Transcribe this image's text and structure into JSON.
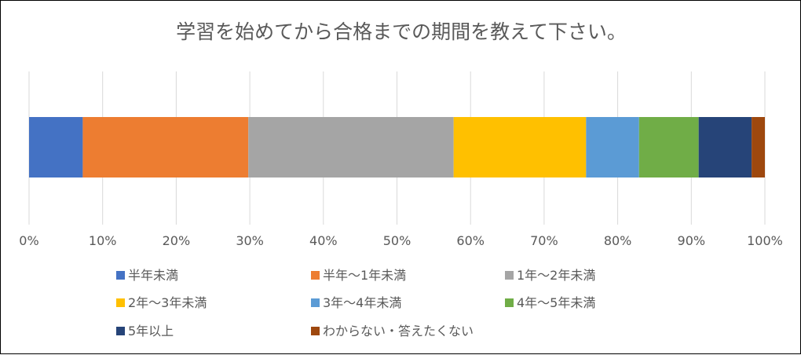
{
  "chart_data": {
    "type": "bar",
    "orientation": "horizontal",
    "stacked": "100%",
    "title": "学習を始めてから合格までの期間を教えて下さい。",
    "xlim": [
      0,
      100
    ],
    "x_ticks": [
      "0%",
      "10%",
      "20%",
      "30%",
      "40%",
      "50%",
      "60%",
      "70%",
      "80%",
      "90%",
      "100%"
    ],
    "grid": true,
    "legend_position": "bottom",
    "series": [
      {
        "name": "半年未満",
        "value": 7.3,
        "color": "#4472C4"
      },
      {
        "name": "半年〜1年未満",
        "value": 22.5,
        "color": "#ED7D31"
      },
      {
        "name": "1年〜2年未満",
        "value": 27.9,
        "color": "#A5A5A5"
      },
      {
        "name": "2年〜3年未満",
        "value": 18.0,
        "color": "#FFC000"
      },
      {
        "name": "3年〜4年未満",
        "value": 7.2,
        "color": "#5B9BD5"
      },
      {
        "name": "4年〜5年未満",
        "value": 8.1,
        "color": "#70AD47"
      },
      {
        "name": "5年以上",
        "value": 7.2,
        "color": "#264478"
      },
      {
        "name": "わからない・答えたくない",
        "value": 1.8,
        "color": "#9E480E"
      }
    ]
  }
}
